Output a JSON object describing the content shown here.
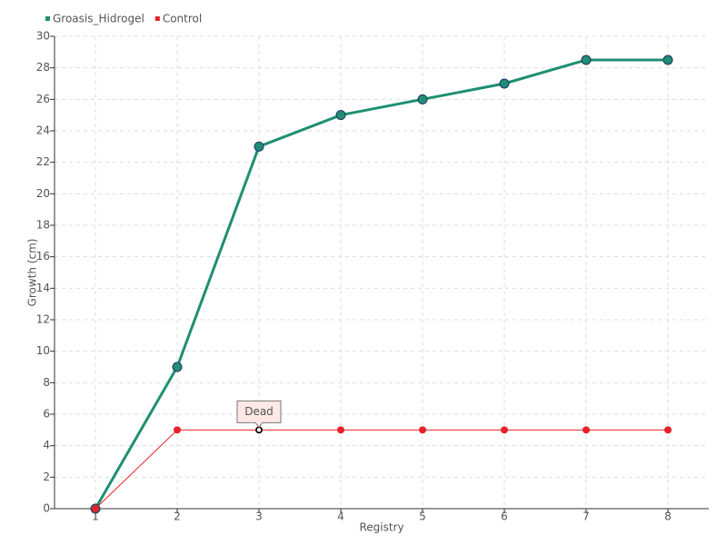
{
  "chart_data": {
    "type": "line",
    "x": [
      1,
      2,
      3,
      4,
      5,
      6,
      7,
      8
    ],
    "xlim": [
      0.5,
      8.5
    ],
    "xticks": [
      1,
      2,
      3,
      4,
      5,
      6,
      7,
      8
    ],
    "ylim": [
      0,
      30
    ],
    "yticks": [
      0,
      2,
      4,
      6,
      8,
      10,
      12,
      14,
      16,
      18,
      20,
      22,
      24,
      26,
      28,
      30
    ],
    "x_label": "Registry",
    "y_label": "Growth (cm)",
    "grid": true,
    "legend": "top-left",
    "series": [
      {
        "name": "Groasis_Hidrogel",
        "color": "#1f8f73",
        "values": [
          0,
          9,
          23,
          25,
          26,
          27,
          28.5,
          28.5
        ]
      },
      {
        "name": "Control",
        "color": "#e8202a",
        "values": [
          0,
          5,
          5,
          5,
          5,
          5,
          5,
          5
        ]
      }
    ],
    "annotations": [
      {
        "text": "Dead",
        "x": 3,
        "y": 5
      }
    ]
  }
}
